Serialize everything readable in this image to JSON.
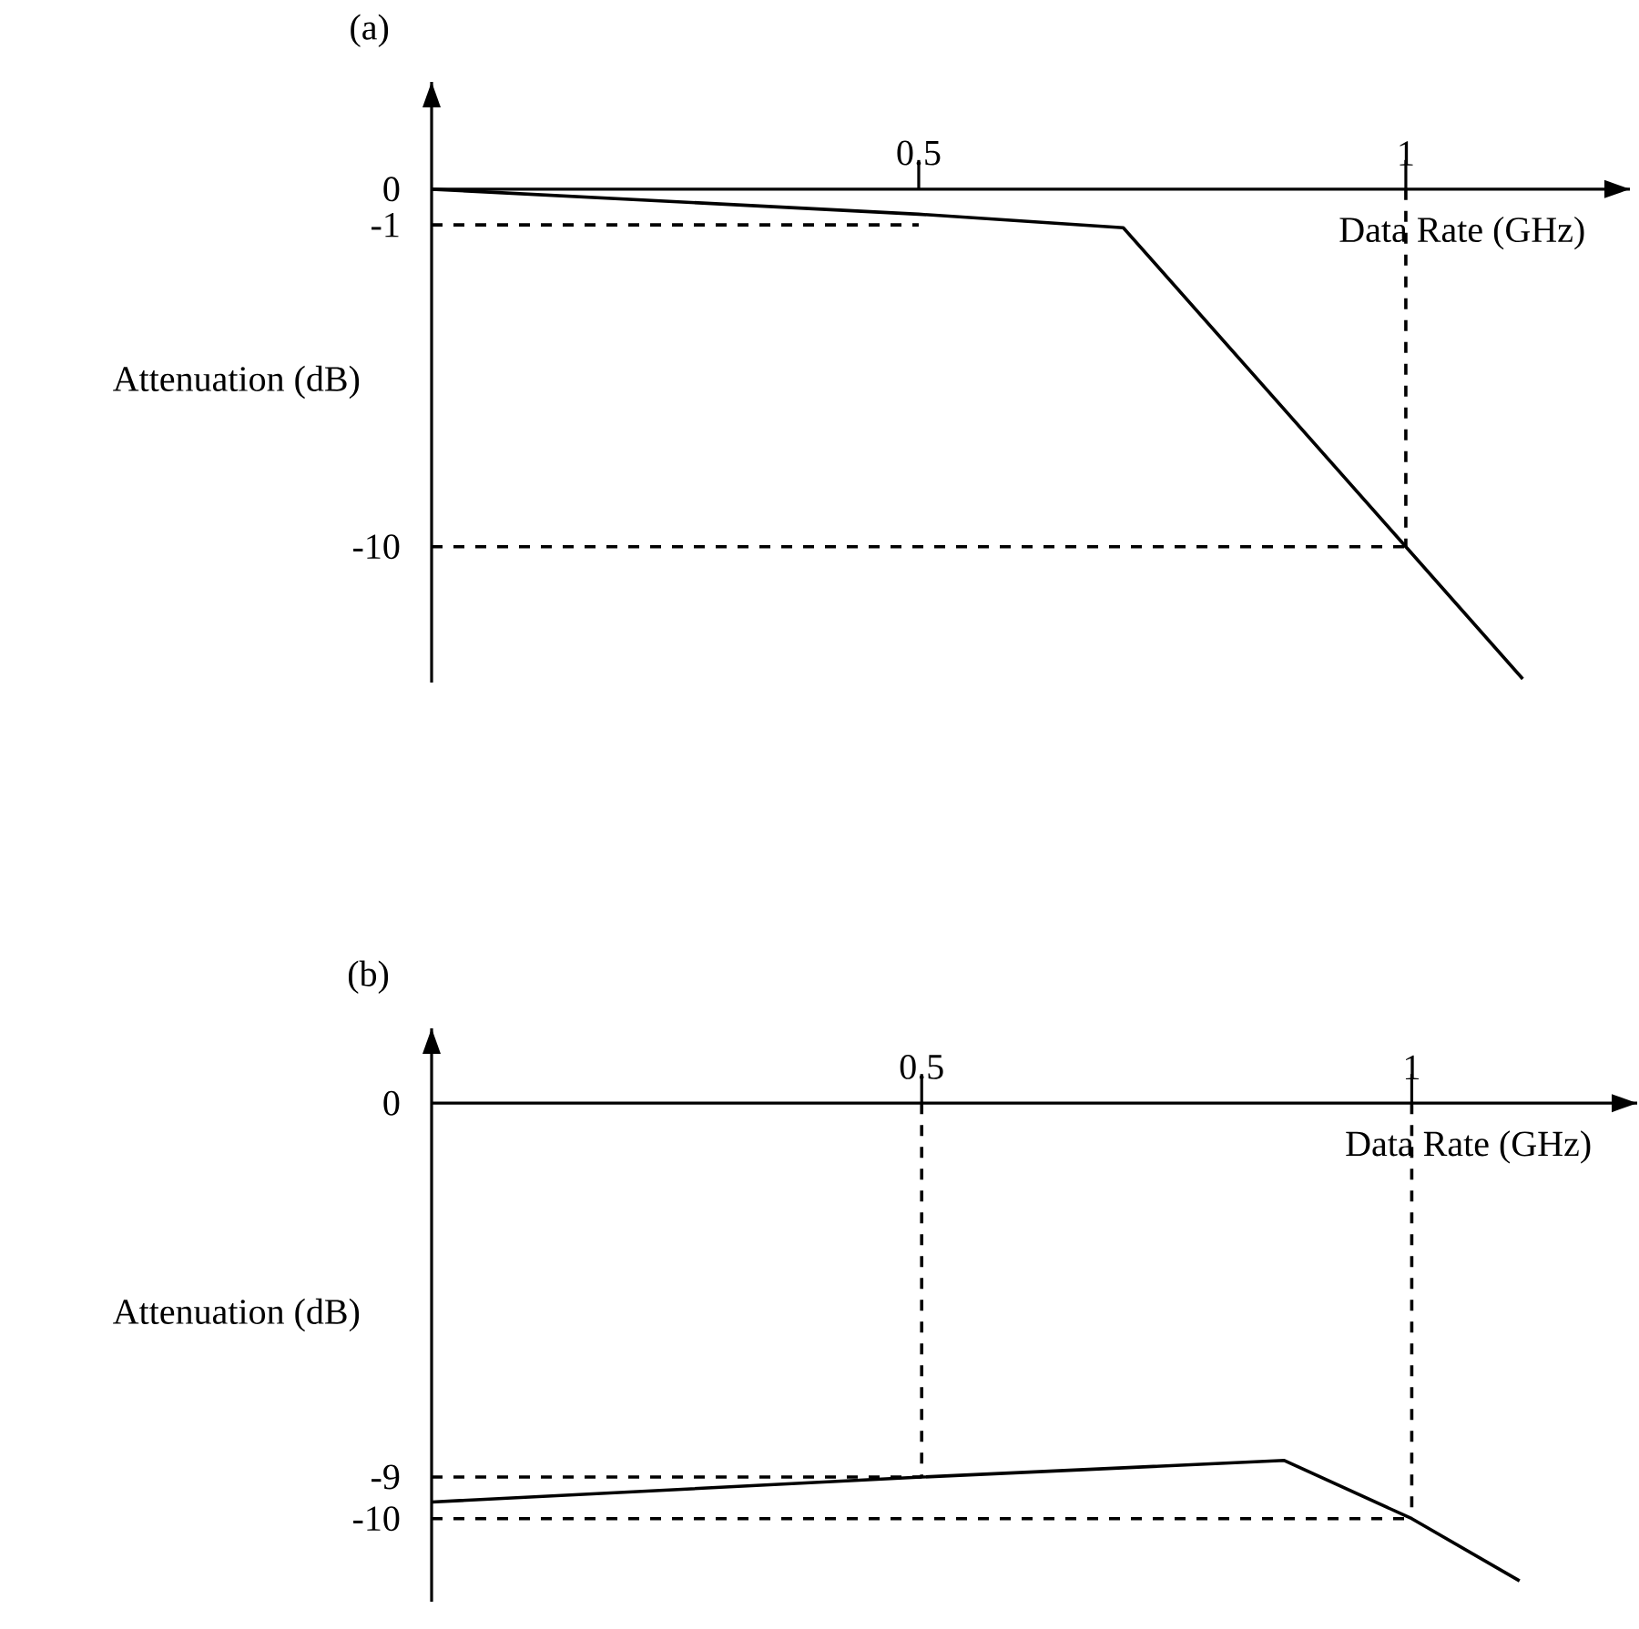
{
  "chart_data": [
    {
      "type": "line",
      "title": "(a)",
      "xlabel": "Data Rate (GHz)",
      "ylabel": "Attenuation  (dB)",
      "xlim": [
        0,
        1.23
      ],
      "ylim": [
        -13.8,
        3
      ],
      "xticks": [
        0.5,
        1
      ],
      "yticks": [
        0,
        -1,
        -10
      ],
      "marker": "none",
      "series": [
        {
          "x": [
            0,
            0.5,
            0.71,
            1,
            1.12
          ],
          "values": [
            0,
            -0.7,
            -1.08,
            -10,
            -13.7
          ],
          "color": "#000000",
          "line_style": "solid"
        },
        {
          "x": [
            0,
            0.5
          ],
          "values": [
            -1,
            -1
          ],
          "color": "#000000",
          "line_style": "dashed"
        },
        {
          "x": [
            0,
            1
          ],
          "values": [
            -10,
            -10
          ],
          "color": "#000000",
          "line_style": "dashed"
        },
        {
          "x": [
            1,
            1
          ],
          "values": [
            0,
            -10
          ],
          "color": "#000000",
          "line_style": "dashed"
        }
      ]
    },
    {
      "type": "line",
      "title": "(b)",
      "xlabel": "Data Rate (GHz)",
      "ylabel": "Attenuation  (dB)",
      "xlim": [
        0,
        1.23
      ],
      "ylim": [
        -12,
        1.8
      ],
      "xticks": [
        0.5,
        1
      ],
      "yticks": [
        0,
        -9,
        -10
      ],
      "marker": "none",
      "series": [
        {
          "x": [
            0,
            0.5,
            0.87,
            1,
            1.11
          ],
          "values": [
            -9.6,
            -9,
            -8.6,
            -10,
            -11.5
          ],
          "color": "#000000",
          "line_style": "solid"
        },
        {
          "x": [
            0,
            0.5
          ],
          "values": [
            -9,
            -9
          ],
          "color": "#000000",
          "line_style": "dashed"
        },
        {
          "x": [
            0.5,
            0.5
          ],
          "values": [
            0,
            -9
          ],
          "color": "#000000",
          "line_style": "dashed"
        },
        {
          "x": [
            0,
            1
          ],
          "values": [
            -10,
            -10
          ],
          "color": "#000000",
          "line_style": "dashed"
        },
        {
          "x": [
            1,
            1
          ],
          "values": [
            0,
            -10
          ],
          "color": "#000000",
          "line_style": "dashed"
        }
      ]
    }
  ]
}
